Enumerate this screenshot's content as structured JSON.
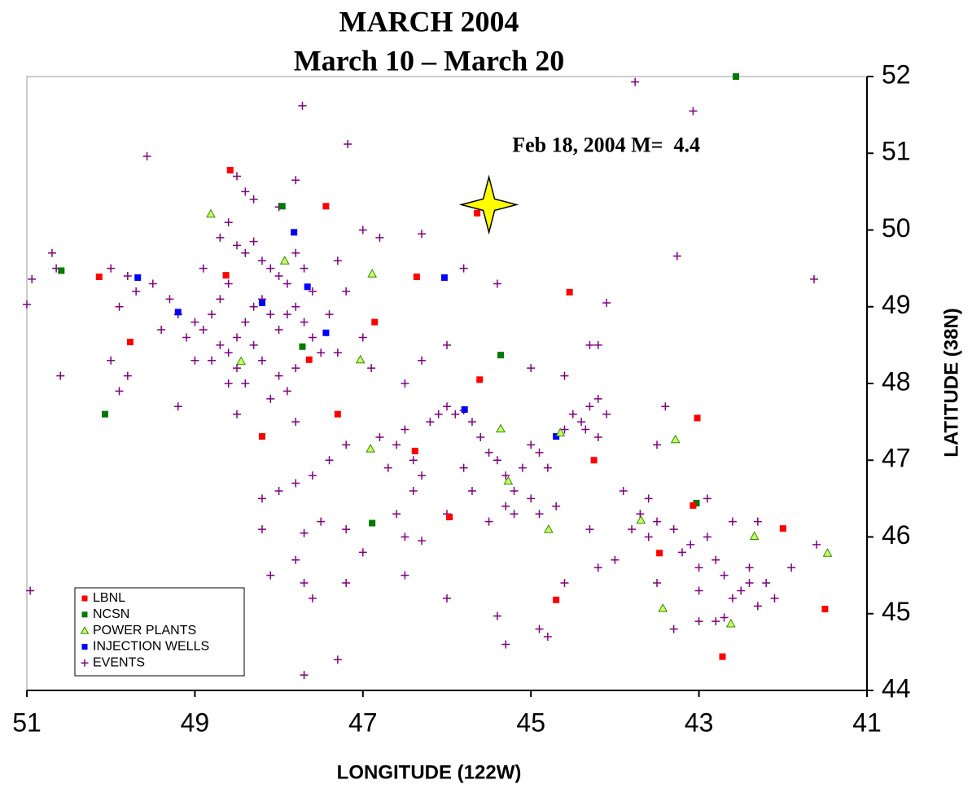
{
  "chart_data": {
    "type": "scatter",
    "title": "MARCH 2004",
    "subtitle": "March 10 – March 20",
    "x_label": "LONGITUDE (122W)",
    "y_label": "LATITUDE (38N)",
    "xlim": [
      51,
      41
    ],
    "ylim": [
      44,
      52
    ],
    "xticks": [
      51,
      49,
      47,
      45,
      43,
      41
    ],
    "yticks": [
      44,
      45,
      46,
      47,
      48,
      49,
      50,
      51,
      52
    ],
    "legend": "lower left",
    "annotation": {
      "text": "Feb 18, 2004 M=  4.4",
      "x": 45.5,
      "y": 50.33
    },
    "series": [
      {
        "name": "LBNL",
        "color": "#ff0000",
        "marker": "square",
        "x": [
          48.58,
          47.44,
          45.64,
          50.14,
          48.63,
          46.36,
          44.54,
          49.77,
          46.86,
          47.64,
          45.61,
          47.3,
          43.02,
          48.2,
          46.38,
          44.25,
          45.97,
          43.07,
          42.0,
          43.47,
          44.7,
          41.5,
          42.72
        ],
        "values": [
          50.78,
          50.31,
          50.22,
          49.39,
          49.41,
          49.39,
          49.19,
          48.54,
          48.8,
          48.31,
          48.05,
          47.6,
          47.55,
          47.31,
          47.12,
          47.0,
          46.26,
          46.41,
          46.11,
          45.79,
          45.18,
          45.06,
          44.44
        ]
      },
      {
        "name": "NCSN",
        "color": "#007a00",
        "marker": "square",
        "x": [
          42.56,
          50.59,
          47.96,
          45.36,
          47.72,
          50.07,
          46.89,
          43.03
        ],
        "values": [
          52.0,
          49.47,
          50.31,
          48.37,
          48.48,
          47.6,
          46.18,
          46.44
        ]
      },
      {
        "name": "POWER PLANTS",
        "color": "#ccff66",
        "marker": "triangle",
        "x": [
          48.81,
          47.93,
          46.89,
          48.45,
          47.03,
          46.91,
          45.36,
          44.65,
          45.27,
          44.79,
          43.28,
          43.69,
          42.34,
          41.47,
          43.43,
          42.62
        ],
        "values": [
          50.21,
          49.6,
          49.43,
          48.29,
          48.31,
          47.15,
          47.41,
          47.36,
          46.73,
          46.1,
          47.27,
          46.22,
          46.01,
          45.79,
          45.07,
          44.87
        ]
      },
      {
        "name": "INJECTION WELLS",
        "color": "#0000ff",
        "marker": "square",
        "x": [
          47.82,
          49.68,
          49.2,
          47.66,
          48.2,
          46.03,
          47.44,
          44.7,
          45.79
        ],
        "values": [
          49.97,
          49.38,
          48.93,
          49.26,
          49.05,
          49.38,
          48.66,
          47.31,
          47.66
        ]
      },
      {
        "name": "EVENTS",
        "color": "#800080",
        "marker": "plus",
        "x": [
          48.5,
          48.4,
          48.3,
          48.2,
          48.1,
          48.0,
          47.9,
          47.8,
          47.7,
          47.6,
          48.6,
          48.7,
          48.8,
          48.9,
          49.0,
          49.1,
          48.5,
          48.4,
          48.3,
          48.2,
          48.1,
          48.0,
          47.9,
          47.8,
          47.7,
          47.6,
          47.5,
          48.6,
          48.5,
          48.4,
          48.3,
          48.2,
          48.0,
          47.9,
          47.8,
          48.7,
          48.8,
          49.2,
          49.3,
          49.4,
          49.5,
          49.7,
          49.8,
          49.9,
          50.0,
          48.9,
          48.7,
          48.6,
          48.3,
          48.0,
          47.8,
          47.3,
          47.2,
          47.4,
          47.0,
          46.9,
          47.3,
          49.8,
          49.9,
          50.0,
          50.6,
          49.0,
          48.5,
          48.1,
          47.8,
          46.8,
          46.6,
          46.5,
          46.4,
          46.3,
          46.2,
          46.1,
          46.0,
          45.9,
          45.8,
          45.7,
          45.6,
          45.5,
          45.4,
          45.3,
          45.2,
          45.1,
          45.0,
          44.9,
          44.8,
          44.6,
          44.5,
          44.4,
          44.3,
          44.2,
          44.1,
          44.35,
          44.2,
          45.3,
          45.2,
          45.0,
          44.9,
          44.7,
          45.5,
          45.7,
          45.8,
          46.0,
          46.4,
          46.7,
          47.2,
          47.4,
          47.6,
          47.8,
          48.0,
          48.2,
          46.5,
          46.3,
          46.0,
          45.8,
          45.4,
          46.8,
          46.3,
          45.0,
          44.6,
          44.3,
          43.9,
          43.7,
          43.6,
          43.5,
          43.3,
          43.2,
          43.1,
          43.0,
          42.9,
          42.8,
          42.7,
          42.6,
          42.5,
          42.4,
          42.3,
          42.2,
          42.7,
          42.8,
          43.0,
          43.0,
          43.3,
          43.5,
          42.6,
          42.3,
          42.1,
          41.9,
          42.4,
          43.8,
          44.3,
          44.2,
          44.0,
          43.6,
          42.9,
          43.4,
          43.5,
          41.6,
          44.6,
          44.9,
          45.3,
          45.4,
          44.8,
          48.2,
          47.8,
          47.7,
          47.6,
          48.1,
          47.2,
          47.2,
          47.0,
          46.5,
          46.5,
          46.0,
          46.6,
          46.3,
          47.5,
          47.7,
          47.3,
          47.7,
          51.0,
          50.94,
          49.57,
          47.72,
          47.18,
          43.76,
          43.07,
          43.26,
          41.63,
          50.96,
          50.7,
          50.65,
          48.5,
          48.4,
          47.0,
          44.1,
          44.2,
          48.6,
          49.2
        ],
        "values": [
          49.8,
          49.7,
          49.85,
          49.6,
          49.5,
          49.4,
          49.3,
          49.7,
          49.5,
          49.2,
          49.3,
          49.1,
          48.9,
          48.7,
          48.8,
          48.6,
          48.6,
          48.8,
          49.0,
          49.1,
          48.9,
          48.7,
          48.9,
          49.0,
          48.8,
          48.6,
          48.4,
          48.4,
          48.2,
          48.0,
          48.5,
          48.3,
          48.1,
          47.9,
          48.2,
          48.5,
          48.3,
          48.9,
          49.1,
          48.7,
          49.3,
          49.2,
          49.4,
          49.0,
          49.5,
          49.5,
          49.9,
          50.1,
          50.4,
          50.3,
          50.65,
          49.6,
          49.2,
          48.9,
          48.6,
          48.2,
          48.4,
          48.1,
          47.9,
          48.3,
          48.1,
          48.3,
          47.6,
          47.8,
          47.5,
          47.3,
          47.2,
          47.4,
          47.0,
          46.8,
          47.5,
          47.6,
          47.7,
          47.6,
          47.65,
          47.5,
          47.3,
          47.1,
          47.0,
          46.8,
          46.6,
          46.9,
          47.2,
          47.1,
          46.9,
          47.4,
          47.6,
          47.5,
          47.7,
          47.8,
          47.6,
          47.4,
          47.3,
          46.4,
          46.3,
          46.5,
          46.3,
          46.4,
          46.2,
          46.6,
          46.9,
          46.3,
          46.6,
          46.9,
          47.2,
          47.0,
          46.8,
          46.7,
          46.6,
          46.5,
          48.0,
          48.3,
          48.5,
          49.5,
          49.3,
          49.9,
          49.95,
          48.2,
          48.1,
          48.5,
          46.6,
          46.3,
          46.0,
          46.2,
          46.1,
          45.8,
          45.9,
          45.6,
          46.0,
          45.7,
          45.5,
          45.2,
          45.3,
          45.4,
          45.1,
          45.4,
          44.95,
          44.9,
          44.9,
          45.3,
          44.8,
          45.4,
          46.2,
          46.2,
          45.2,
          45.6,
          45.6,
          46.1,
          46.1,
          45.6,
          45.7,
          46.5,
          46.5,
          47.7,
          47.2,
          45.9,
          45.4,
          44.8,
          44.6,
          44.97,
          44.7,
          46.1,
          45.7,
          45.4,
          45.2,
          45.5,
          45.4,
          46.1,
          45.8,
          45.5,
          46.0,
          45.2,
          46.3,
          45.95,
          46.2,
          44.2,
          44.4,
          46.05,
          49.03,
          49.36,
          50.96,
          51.62,
          51.12,
          51.93,
          51.55,
          49.66,
          49.36,
          45.3,
          49.7,
          49.5,
          50.7,
          50.5,
          50.0,
          49.05,
          48.5,
          48.0,
          47.7
        ]
      }
    ]
  }
}
